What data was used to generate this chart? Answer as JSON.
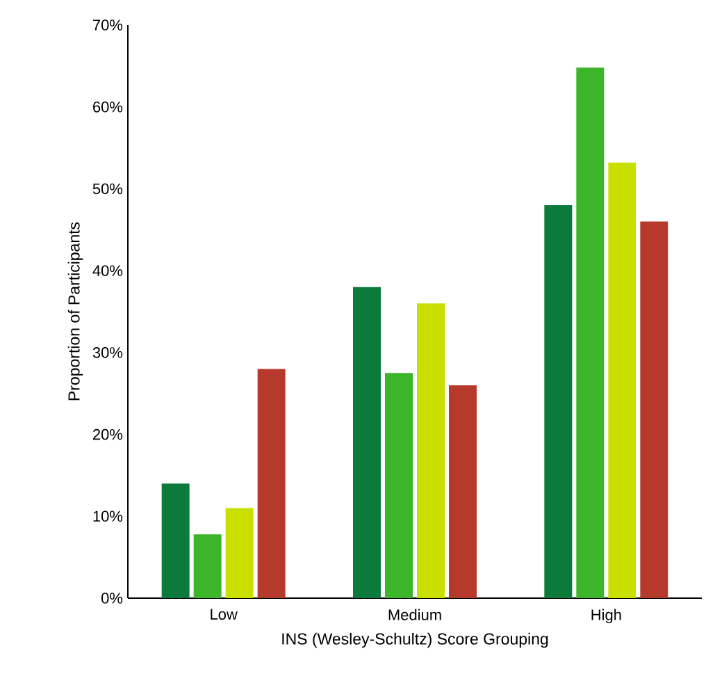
{
  "chart_data": {
    "type": "bar",
    "xlabel": "INS (Wesley-Schultz) Score Grouping",
    "ylabel": "Proportion of Participants",
    "categories": [
      "Low",
      "Medium",
      "High"
    ],
    "series": [
      {
        "color": "#0b7a3b",
        "values": [
          14,
          38,
          48
        ]
      },
      {
        "color": "#3db52b",
        "values": [
          7.8,
          27.5,
          64.8
        ]
      },
      {
        "color": "#c9df00",
        "values": [
          11,
          36,
          53.2
        ]
      },
      {
        "color": "#b63a2c",
        "values": [
          28,
          26,
          46
        ]
      }
    ],
    "ylim": [
      0,
      70
    ],
    "yticks": [
      {
        "value": 0,
        "label": "0%"
      },
      {
        "value": 10,
        "label": "10%"
      },
      {
        "value": 20,
        "label": "20%"
      },
      {
        "value": 30,
        "label": "30%"
      },
      {
        "value": 40,
        "label": "40%"
      },
      {
        "value": 50,
        "label": "50%"
      },
      {
        "value": 60,
        "label": "60%"
      },
      {
        "value": 70,
        "label": "70%"
      }
    ],
    "grid": false
  }
}
